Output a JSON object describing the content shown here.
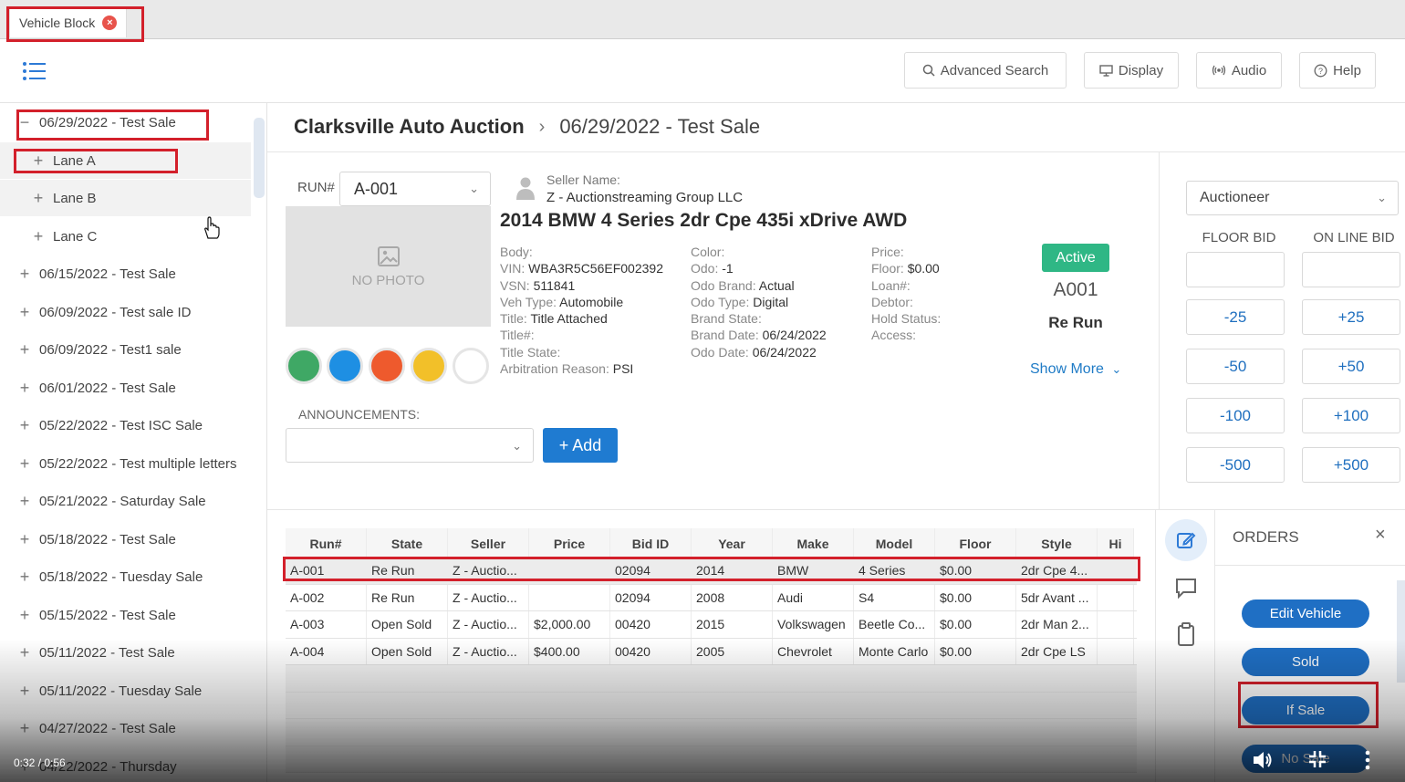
{
  "tab": {
    "label": "Vehicle Block",
    "close_glyph": "×"
  },
  "toolbar": {
    "advanced_search": "Advanced Search",
    "display": "Display",
    "audio": "Audio",
    "help": "Help"
  },
  "sidebar": {
    "items": [
      {
        "label": "06/29/2022 - Test Sale",
        "sign": "−"
      },
      {
        "label": "Lane A",
        "sign": "+"
      },
      {
        "label": "Lane B",
        "sign": "+"
      },
      {
        "label": "Lane C",
        "sign": "+"
      },
      {
        "label": "06/15/2022 - Test Sale",
        "sign": "+"
      },
      {
        "label": "06/09/2022 - Test sale ID",
        "sign": "+"
      },
      {
        "label": "06/09/2022 - Test1 sale",
        "sign": "+"
      },
      {
        "label": "06/01/2022 - Test Sale",
        "sign": "+"
      },
      {
        "label": "05/22/2022 - Test ISC Sale",
        "sign": "+"
      },
      {
        "label": "05/22/2022 - Test multiple letters",
        "sign": "+"
      },
      {
        "label": "05/21/2022 - Saturday Sale",
        "sign": "+"
      },
      {
        "label": "05/18/2022 - Test Sale",
        "sign": "+"
      },
      {
        "label": "05/18/2022 - Tuesday Sale",
        "sign": "+"
      },
      {
        "label": "05/15/2022 - Test Sale",
        "sign": "+"
      },
      {
        "label": "05/11/2022 - Test Sale",
        "sign": "+"
      },
      {
        "label": "05/11/2022 - Tuesday Sale",
        "sign": "+"
      },
      {
        "label": "04/27/2022 - Test Sale",
        "sign": "+"
      },
      {
        "label": "04/22/2022 - Thursday",
        "sign": "+"
      }
    ]
  },
  "breadcrumb": {
    "home": "Clarksville Auto Auction",
    "separator": "›",
    "sale": "06/29/2022 - Test Sale"
  },
  "vehicle": {
    "run_label": "RUN#",
    "run_value": "A-001",
    "no_photo": "NO PHOTO",
    "seller_label": "Seller Name:",
    "seller_name": "Z - Auctionstreaming Group LLC",
    "title": "2014 BMW 4 Series 2dr Cpe 435i xDrive AWD",
    "col1": [
      {
        "k": "Body:",
        "v": ""
      },
      {
        "k": "VIN:",
        "v": "WBA3R5C56EF002392"
      },
      {
        "k": "VSN:",
        "v": "511841"
      },
      {
        "k": "Veh Type:",
        "v": "Automobile"
      },
      {
        "k": "Title:",
        "v": "Title Attached"
      },
      {
        "k": "Title#:",
        "v": ""
      },
      {
        "k": "Title State:",
        "v": ""
      },
      {
        "k": "Arbitration Reason:",
        "v": "PSI"
      }
    ],
    "col2": [
      {
        "k": "Color:",
        "v": ""
      },
      {
        "k": "Odo:",
        "v": "-1"
      },
      {
        "k": "Odo Brand:",
        "v": "Actual"
      },
      {
        "k": "Odo Type:",
        "v": "Digital"
      },
      {
        "k": "Brand State:",
        "v": ""
      },
      {
        "k": "Brand Date:",
        "v": "06/24/2022"
      },
      {
        "k": "Odo Date:",
        "v": "06/24/2022"
      }
    ],
    "col3": [
      {
        "k": "Price:",
        "v": ""
      },
      {
        "k": "Floor:",
        "v": "$0.00"
      },
      {
        "k": "Loan#:",
        "v": ""
      },
      {
        "k": "Debtor:",
        "v": ""
      },
      {
        "k": "Hold Status:",
        "v": ""
      },
      {
        "k": "Access:",
        "v": ""
      }
    ],
    "status_badge": "Active",
    "run_code": "A001",
    "run_state": "Re Run",
    "show_more": "Show More",
    "colors": [
      "#3fa865",
      "#1e8fe3",
      "#ee5a2d",
      "#f2c029",
      "#ffffff"
    ]
  },
  "announcements": {
    "label": "ANNOUNCEMENTS:",
    "add": "+ Add"
  },
  "bid": {
    "auctioneer": "Auctioneer",
    "floor_head": "FLOOR BID",
    "online_head": "ON LINE BID",
    "floor_buttons": [
      "-25",
      "-50",
      "-100",
      "-500"
    ],
    "online_buttons": [
      "+25",
      "+50",
      "+100",
      "+500"
    ]
  },
  "grid": {
    "headers": [
      "Run#",
      "State",
      "Seller",
      "Price",
      "Bid ID",
      "Year",
      "Make",
      "Model",
      "Floor",
      "Style",
      "Hi"
    ],
    "rows": [
      [
        "A-001",
        "Re Run",
        "Z - Auctio...",
        "",
        "02094",
        "2014",
        "BMW",
        "4 Series",
        "$0.00",
        "2dr Cpe 4...",
        ""
      ],
      [
        "A-002",
        "Re Run",
        "Z - Auctio...",
        "",
        "02094",
        "2008",
        "Audi",
        "S4",
        "$0.00",
        "5dr Avant ...",
        ""
      ],
      [
        "A-003",
        "Open Sold",
        "Z - Auctio...",
        "$2,000.00",
        "00420",
        "2015",
        "Volkswagen",
        "Beetle Co...",
        "$0.00",
        "2dr Man 2...",
        ""
      ],
      [
        "A-004",
        "Open Sold",
        "Z - Auctio...",
        "$400.00",
        "00420",
        "2005",
        "Chevrolet",
        "Monte Carlo",
        "$0.00",
        "2dr Cpe LS",
        ""
      ]
    ]
  },
  "orders": {
    "title": "ORDERS",
    "close": "×",
    "buttons": [
      "Edit Vehicle",
      "Sold",
      "If Sale",
      "No Sale"
    ]
  },
  "video": {
    "time": "0:32 / 0:56"
  }
}
